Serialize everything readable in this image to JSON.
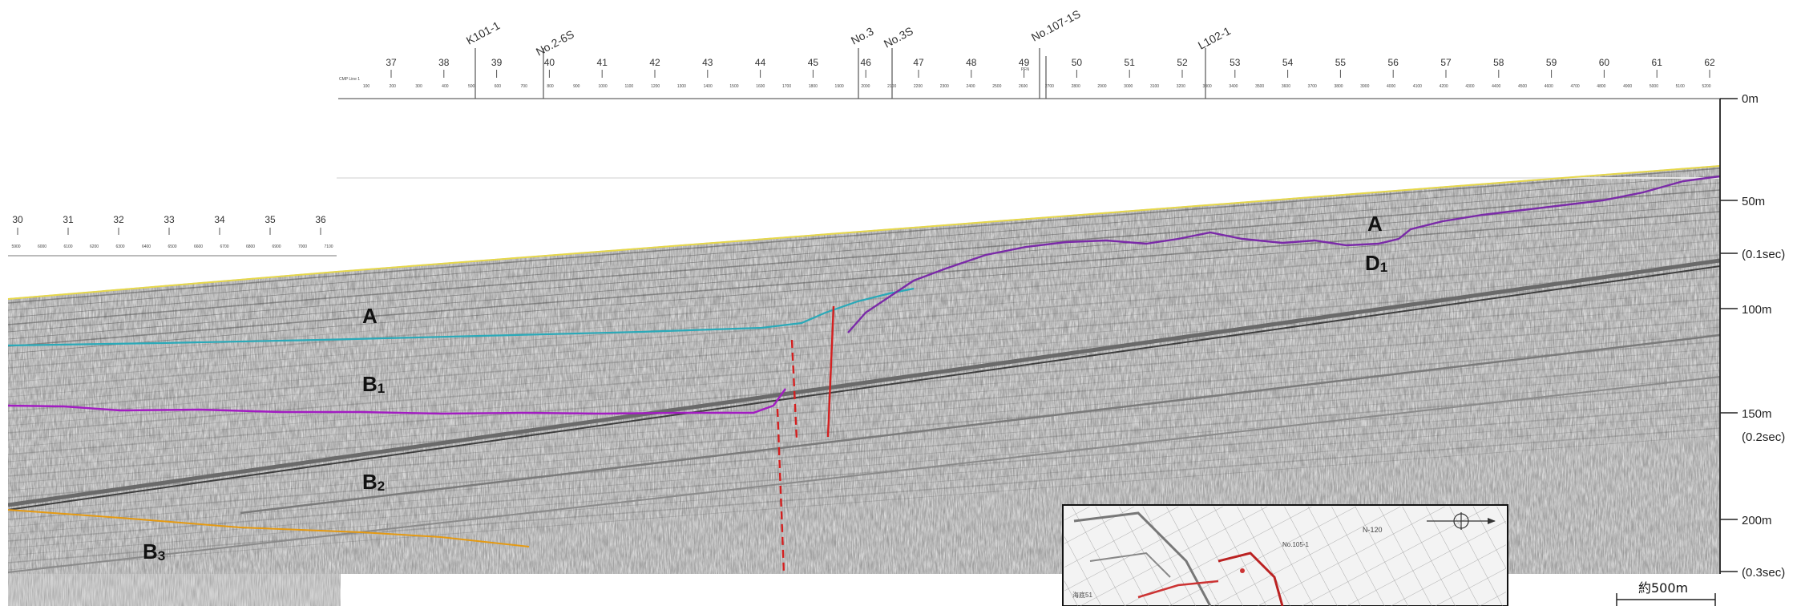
{
  "top_axis": {
    "line_label": "CMP Line 1",
    "stations": [
      "37",
      "38",
      "39",
      "40",
      "41",
      "42",
      "43",
      "44",
      "45",
      "46",
      "47",
      "48",
      "49",
      "50",
      "51",
      "52",
      "53",
      "54",
      "55",
      "56",
      "57",
      "58",
      "59",
      "60",
      "61",
      "62"
    ],
    "cmp_values": [
      "100",
      "200",
      "300",
      "400",
      "500",
      "600",
      "700",
      "800",
      "900",
      "1000",
      "1100",
      "1200",
      "1300",
      "1400",
      "1500",
      "1600",
      "1700",
      "1800",
      "1900",
      "2000",
      "2100",
      "2200",
      "2300",
      "2400",
      "2500",
      "2600",
      "2700",
      "2800",
      "2900",
      "3000",
      "3100",
      "3200",
      "3300",
      "3400",
      "3500",
      "3600",
      "3700",
      "3800",
      "3900",
      "4000",
      "4100",
      "4200",
      "4300",
      "4400",
      "4500",
      "4600",
      "4700",
      "4800",
      "4900",
      "5000",
      "5100",
      "5200"
    ],
    "pfn_label": "PFN"
  },
  "left_axis": {
    "stations": [
      "30",
      "31",
      "32",
      "33",
      "34",
      "35",
      "36"
    ],
    "cmp_values": [
      "5900",
      "6000",
      "6100",
      "6200",
      "6300",
      "6400",
      "6500",
      "6600",
      "6700",
      "6800",
      "6900",
      "7000",
      "7100"
    ]
  },
  "boreholes": [
    "K101-1",
    "No.2-6S",
    "No.3",
    "No.3S",
    "No.107-1S",
    "L102-1"
  ],
  "depth_scale": {
    "labels": [
      "0m",
      "50m",
      "(0.1sec)",
      "100m",
      "150m",
      "(0.2sec)",
      "200m",
      "(0.3sec)"
    ]
  },
  "layers": {
    "A_left": "A",
    "B1_main": "B",
    "B1_sub": "1",
    "B2_main": "B",
    "B2_sub": "2",
    "B3_main": "B",
    "B3_sub": "3",
    "A_right": "A",
    "D1_main": "D",
    "D1_sub": "1"
  },
  "scale_bar": {
    "label": "約500m"
  },
  "inset_map": {
    "labels": [
      "No.105-1",
      "N-120",
      "海底51"
    ]
  },
  "colors": {
    "horizon_A": "#2aa9b8",
    "horizon_B1": "#a21cc2",
    "horizon_D1": "#7a2aa8",
    "horizon_B3": "#e59a12",
    "fault": "#d41f1f",
    "seafloor": "#e7d84a"
  }
}
